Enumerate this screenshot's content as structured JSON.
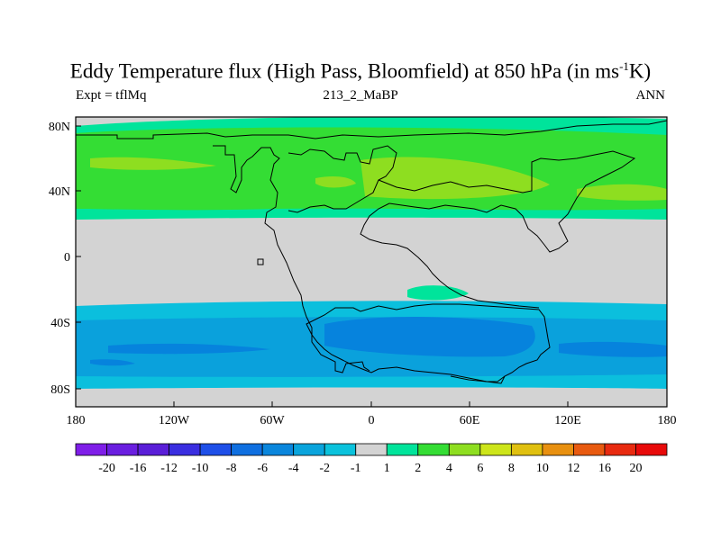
{
  "title": {
    "text_before": "Eddy Temperature flux (High Pass, Bloomfield) at 850 hPa (in ms",
    "superscript": "-1",
    "text_after": "K)"
  },
  "left_label": "Expt = tflMq",
  "center_label": "213_2_MaBP",
  "right_label": "ANN",
  "map": {
    "lon_labels": [
      "180",
      "120W",
      "60W",
      "0",
      "60E",
      "120E",
      "180"
    ],
    "lat_labels": [
      "80N",
      "40N",
      "0",
      "40S",
      "80S"
    ],
    "background_color": "#d3d3d3",
    "field_colors": {
      "c2": "#34dd34",
      "c4": "#8ede20",
      "c_neg1": "#0bbfdd",
      "c_neg2": "#0aa1dc",
      "c_neg4": "#0683dd",
      "pos1": "#00e49b"
    }
  },
  "colorbar": {
    "labels": [
      "-20",
      "-16",
      "-12",
      "-10",
      "-8",
      "-6",
      "-4",
      "-2",
      "-1",
      "1",
      "2",
      "4",
      "6",
      "8",
      "10",
      "12",
      "16",
      "20"
    ],
    "colors": [
      "#7f1ee8",
      "#6a1ee0",
      "#5a1ed8",
      "#3a2ee0",
      "#1e4fe8",
      "#0f6fe0",
      "#0a86dc",
      "#0aa4dc",
      "#0bc2dc",
      "#d3d3d3",
      "#00e49b",
      "#34dd34",
      "#8ede20",
      "#cde51a",
      "#e0c010",
      "#e89010",
      "#e85a10",
      "#e82a10",
      "#e80a0a"
    ]
  }
}
